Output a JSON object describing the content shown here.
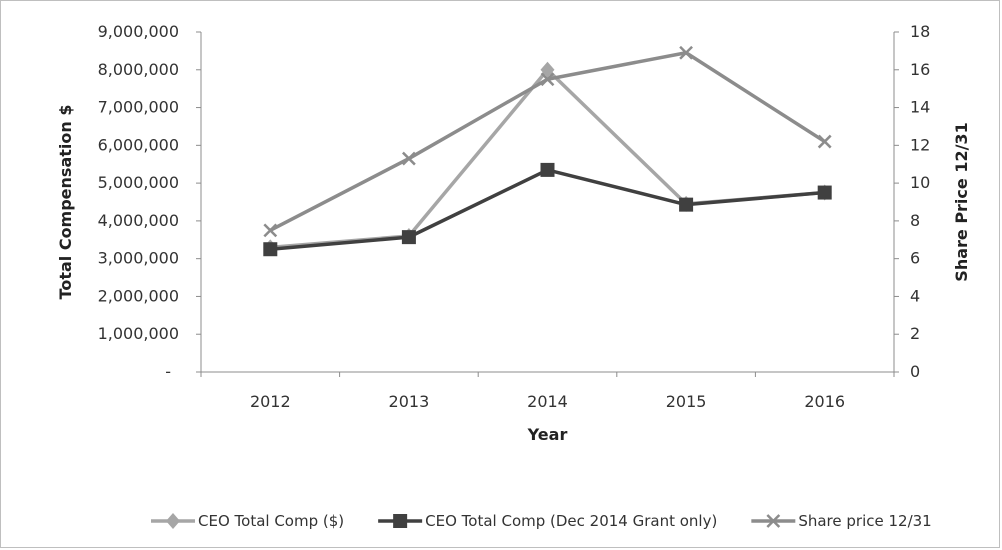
{
  "chart_data": {
    "type": "line",
    "title": "",
    "categories": [
      "2012",
      "2013",
      "2014",
      "2015",
      "2016"
    ],
    "xlabel": "Year",
    "ylabel_left": "Total Compensation $",
    "ylabel_right": "Share Price 12/31",
    "left_axis": {
      "ylim": [
        0,
        9000000
      ],
      "ticks": [
        0,
        1000000,
        2000000,
        3000000,
        4000000,
        5000000,
        6000000,
        7000000,
        8000000,
        9000000
      ],
      "tick_labels": [
        "-",
        "1,000,000",
        "2,000,000",
        "3,000,000",
        "4,000,000",
        "5,000,000",
        "6,000,000",
        "7,000,000",
        "8,000,000",
        "9,000,000"
      ]
    },
    "right_axis": {
      "ylim": [
        0,
        18
      ],
      "ticks": [
        0,
        2,
        4,
        6,
        8,
        10,
        12,
        14,
        16,
        18
      ],
      "tick_labels": [
        "0",
        "2",
        "4",
        "6",
        "8",
        "10",
        "12",
        "14",
        "16",
        "18"
      ]
    },
    "series": [
      {
        "name": "CEO Total Comp ($)",
        "axis": "left",
        "marker": "diamond",
        "color": "#a6a6a6",
        "values": [
          3300000,
          3600000,
          8000000,
          4450000,
          4750000
        ]
      },
      {
        "name": "CEO Total Comp (Dec 2014 Grant only)",
        "axis": "left",
        "marker": "square",
        "color": "#404040",
        "values": [
          3250000,
          3570000,
          5350000,
          4430000,
          4750000
        ]
      },
      {
        "name": "Share price 12/31",
        "axis": "right",
        "marker": "x",
        "color": "#8c8c8c",
        "values": [
          7.5,
          11.3,
          15.5,
          16.9,
          12.2
        ]
      }
    ],
    "grid": false,
    "legend_position": "bottom"
  }
}
